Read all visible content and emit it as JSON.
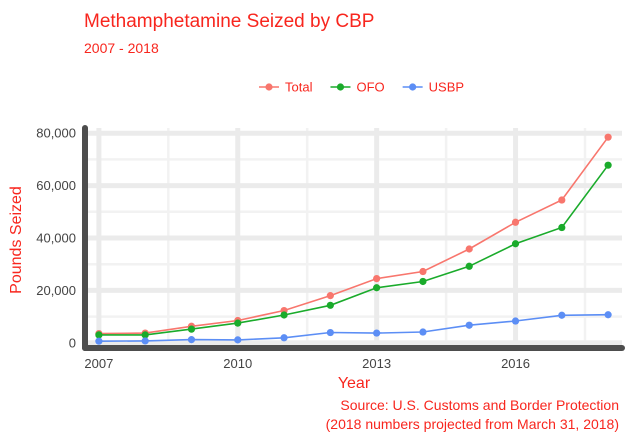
{
  "title": "Methamphetamine Seized by CBP",
  "subtitle": "2007 - 2018",
  "caption_lines": [
    "Source: U.S. Customs and Border Protection",
    "(2018 numbers projected from March 31, 2018)"
  ],
  "colors": {
    "text": "#f8261e",
    "Total": "#f8766d",
    "OFO": "#1aab2b",
    "USBP": "#5c8ef5"
  },
  "chart_data": {
    "type": "line",
    "title": "Methamphetamine Seized by CBP",
    "subtitle": "2007 - 2018",
    "xlabel": "Year",
    "ylabel": "Pounds Seized",
    "x": [
      2007,
      2008,
      2009,
      2010,
      2011,
      2012,
      2013,
      2014,
      2015,
      2016,
      2017,
      2018
    ],
    "xlim": [
      2006.7,
      2018.3
    ],
    "ylim": [
      -2000,
      82000
    ],
    "x_ticks": [
      2007,
      2010,
      2013,
      2016
    ],
    "x_tick_labels": [
      "2007",
      "2010",
      "2013",
      "2016"
    ],
    "y_ticks": [
      0,
      20000,
      40000,
      60000,
      80000
    ],
    "y_tick_labels": [
      "0",
      "20,000",
      "40,000",
      "60,000",
      "80,000"
    ],
    "grid": true,
    "legend_position": "top",
    "series": [
      {
        "name": "Total",
        "values": [
          3500,
          3700,
          6300,
          8500,
          12300,
          18000,
          24500,
          27200,
          35800,
          46000,
          54500,
          78500
        ]
      },
      {
        "name": "OFO",
        "values": [
          3000,
          3000,
          5200,
          7500,
          10600,
          14300,
          21000,
          23400,
          29200,
          37800,
          44000,
          67800
        ]
      },
      {
        "name": "USBP",
        "values": [
          600,
          700,
          1200,
          1100,
          1900,
          3900,
          3700,
          4100,
          6700,
          8300,
          10500,
          10700
        ]
      }
    ]
  }
}
